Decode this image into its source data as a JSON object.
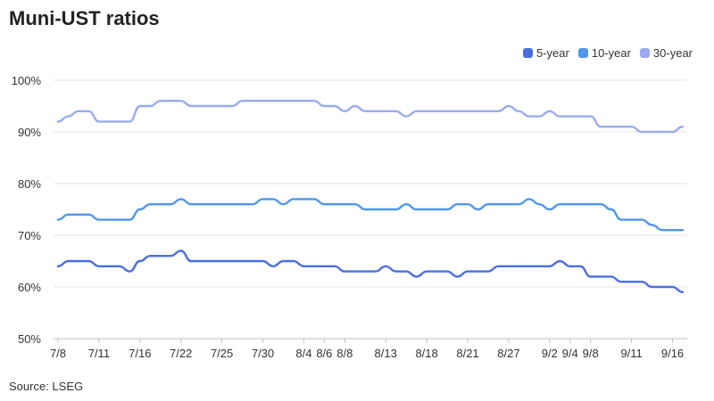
{
  "title": "Muni-UST ratios",
  "source": "Source: LSEG",
  "chart_data": {
    "type": "line",
    "y_ticks": [
      "50%",
      "60%",
      "70%",
      "80%",
      "90%",
      "100%"
    ],
    "ylim": [
      50,
      100
    ],
    "grid": true,
    "legend_position": "top-right",
    "x_tick_labels": [
      "7/8",
      "7/11",
      "7/16",
      "7/22",
      "7/25",
      "7/30",
      "8/4",
      "8/6",
      "8/8",
      "8/13",
      "8/18",
      "8/21",
      "8/27",
      "9/2",
      "9/4",
      "9/8",
      "9/11",
      "9/16"
    ],
    "x_tick_index": [
      0,
      4,
      8,
      12,
      16,
      20,
      24,
      26,
      28,
      32,
      36,
      40,
      44,
      48,
      50,
      52,
      56,
      60
    ],
    "series": [
      {
        "name": "5-year",
        "color": "#4a6ee0",
        "values": [
          64,
          65,
          65,
          65,
          64,
          64,
          64,
          63,
          65,
          66,
          66,
          66,
          67,
          65,
          65,
          65,
          65,
          65,
          65,
          65,
          65,
          64,
          65,
          65,
          64,
          64,
          64,
          64,
          63,
          63,
          63,
          63,
          64,
          63,
          63,
          62,
          63,
          63,
          63,
          62,
          63,
          63,
          63,
          64,
          64,
          64,
          64,
          64,
          64,
          65,
          64,
          64,
          62,
          62,
          62,
          61,
          61,
          61,
          60,
          60,
          60,
          59
        ]
      },
      {
        "name": "10-year",
        "color": "#4e97ea",
        "values": [
          73,
          74,
          74,
          74,
          73,
          73,
          73,
          73,
          75,
          76,
          76,
          76,
          77,
          76,
          76,
          76,
          76,
          76,
          76,
          76,
          77,
          77,
          76,
          77,
          77,
          77,
          76,
          76,
          76,
          76,
          75,
          75,
          75,
          75,
          76,
          75,
          75,
          75,
          75,
          76,
          76,
          75,
          76,
          76,
          76,
          76,
          77,
          76,
          75,
          76,
          76,
          76,
          76,
          76,
          75,
          73,
          73,
          73,
          72,
          71,
          71,
          71
        ]
      },
      {
        "name": "30-year",
        "color": "#9aabf0",
        "values": [
          92,
          93,
          94,
          94,
          92,
          92,
          92,
          92,
          95,
          95,
          96,
          96,
          96,
          95,
          95,
          95,
          95,
          95,
          96,
          96,
          96,
          96,
          96,
          96,
          96,
          96,
          95,
          95,
          94,
          95,
          94,
          94,
          94,
          94,
          93,
          94,
          94,
          94,
          94,
          94,
          94,
          94,
          94,
          94,
          95,
          94,
          93,
          93,
          94,
          93,
          93,
          93,
          93,
          91,
          91,
          91,
          91,
          90,
          90,
          90,
          90,
          91
        ]
      }
    ]
  }
}
